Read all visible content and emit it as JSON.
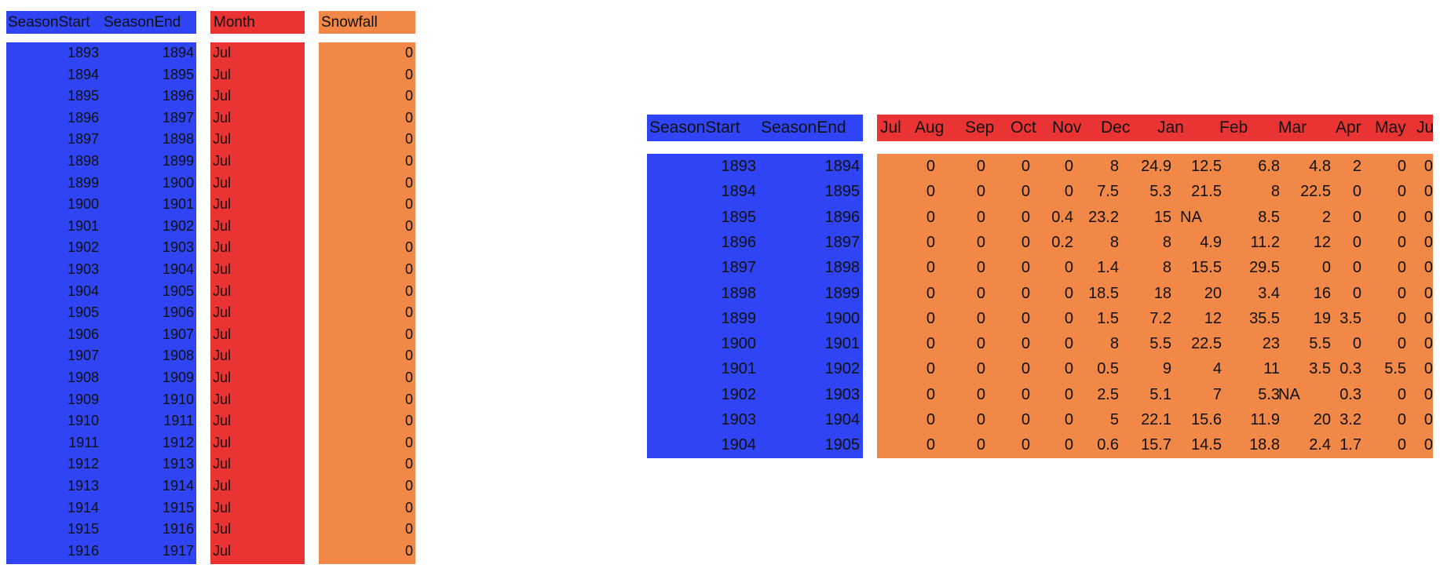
{
  "long_table": {
    "headers": {
      "season_start": "SeasonStart",
      "season_end": "SeasonEnd",
      "month": "Month",
      "snowfall": "Snowfall"
    },
    "rows": [
      {
        "season_start": "1893",
        "season_end": "1894",
        "month": "Jul",
        "snowfall": "0"
      },
      {
        "season_start": "1894",
        "season_end": "1895",
        "month": "Jul",
        "snowfall": "0"
      },
      {
        "season_start": "1895",
        "season_end": "1896",
        "month": "Jul",
        "snowfall": "0"
      },
      {
        "season_start": "1896",
        "season_end": "1897",
        "month": "Jul",
        "snowfall": "0"
      },
      {
        "season_start": "1897",
        "season_end": "1898",
        "month": "Jul",
        "snowfall": "0"
      },
      {
        "season_start": "1898",
        "season_end": "1899",
        "month": "Jul",
        "snowfall": "0"
      },
      {
        "season_start": "1899",
        "season_end": "1900",
        "month": "Jul",
        "snowfall": "0"
      },
      {
        "season_start": "1900",
        "season_end": "1901",
        "month": "Jul",
        "snowfall": "0"
      },
      {
        "season_start": "1901",
        "season_end": "1902",
        "month": "Jul",
        "snowfall": "0"
      },
      {
        "season_start": "1902",
        "season_end": "1903",
        "month": "Jul",
        "snowfall": "0"
      },
      {
        "season_start": "1903",
        "season_end": "1904",
        "month": "Jul",
        "snowfall": "0"
      },
      {
        "season_start": "1904",
        "season_end": "1905",
        "month": "Jul",
        "snowfall": "0"
      },
      {
        "season_start": "1905",
        "season_end": "1906",
        "month": "Jul",
        "snowfall": "0"
      },
      {
        "season_start": "1906",
        "season_end": "1907",
        "month": "Jul",
        "snowfall": "0"
      },
      {
        "season_start": "1907",
        "season_end": "1908",
        "month": "Jul",
        "snowfall": "0"
      },
      {
        "season_start": "1908",
        "season_end": "1909",
        "month": "Jul",
        "snowfall": "0"
      },
      {
        "season_start": "1909",
        "season_end": "1910",
        "month": "Jul",
        "snowfall": "0"
      },
      {
        "season_start": "1910",
        "season_end": "1911",
        "month": "Jul",
        "snowfall": "0"
      },
      {
        "season_start": "1911",
        "season_end": "1912",
        "month": "Jul",
        "snowfall": "0"
      },
      {
        "season_start": "1912",
        "season_end": "1913",
        "month": "Jul",
        "snowfall": "0"
      },
      {
        "season_start": "1913",
        "season_end": "1914",
        "month": "Jul",
        "snowfall": "0"
      },
      {
        "season_start": "1914",
        "season_end": "1915",
        "month": "Jul",
        "snowfall": "0"
      },
      {
        "season_start": "1915",
        "season_end": "1916",
        "month": "Jul",
        "snowfall": "0"
      },
      {
        "season_start": "1916",
        "season_end": "1917",
        "month": "Jul",
        "snowfall": "0"
      }
    ]
  },
  "wide_table": {
    "headers": {
      "season_start": "SeasonStart",
      "season_end": "SeasonEnd"
    },
    "months": [
      "Jul",
      "Aug",
      "Sep",
      "Oct",
      "Nov",
      "Dec",
      "Jan",
      "Feb",
      "Mar",
      "Apr",
      "May",
      "Jun"
    ],
    "rows": [
      {
        "season_start": "1893",
        "season_end": "1894",
        "values": [
          "0",
          "0",
          "0",
          "0",
          "8",
          "24.9",
          "12.5",
          "6.8",
          "4.8",
          "2",
          "0",
          "0"
        ]
      },
      {
        "season_start": "1894",
        "season_end": "1895",
        "values": [
          "0",
          "0",
          "0",
          "0",
          "7.5",
          "5.3",
          "21.5",
          "8",
          "22.5",
          "0",
          "0",
          "0"
        ]
      },
      {
        "season_start": "1895",
        "season_end": "1896",
        "values": [
          "0",
          "0",
          "0",
          "0.4",
          "23.2",
          "15",
          "NA",
          "8.5",
          "2",
          "0",
          "0",
          "0"
        ]
      },
      {
        "season_start": "1896",
        "season_end": "1897",
        "values": [
          "0",
          "0",
          "0",
          "0.2",
          "8",
          "8",
          "4.9",
          "11.2",
          "12",
          "0",
          "0",
          "0"
        ]
      },
      {
        "season_start": "1897",
        "season_end": "1898",
        "values": [
          "0",
          "0",
          "0",
          "0",
          "1.4",
          "8",
          "15.5",
          "29.5",
          "0",
          "0",
          "0",
          "0"
        ]
      },
      {
        "season_start": "1898",
        "season_end": "1899",
        "values": [
          "0",
          "0",
          "0",
          "0",
          "18.5",
          "18",
          "20",
          "3.4",
          "16",
          "0",
          "0",
          "0"
        ]
      },
      {
        "season_start": "1899",
        "season_end": "1900",
        "values": [
          "0",
          "0",
          "0",
          "0",
          "1.5",
          "7.2",
          "12",
          "35.5",
          "19",
          "3.5",
          "0",
          "0"
        ]
      },
      {
        "season_start": "1900",
        "season_end": "1901",
        "values": [
          "0",
          "0",
          "0",
          "0",
          "8",
          "5.5",
          "22.5",
          "23",
          "5.5",
          "0",
          "0",
          "0"
        ]
      },
      {
        "season_start": "1901",
        "season_end": "1902",
        "values": [
          "0",
          "0",
          "0",
          "0",
          "0.5",
          "9",
          "4",
          "11",
          "3.5",
          "0.3",
          "5.5",
          "0"
        ]
      },
      {
        "season_start": "1902",
        "season_end": "1903",
        "values": [
          "0",
          "0",
          "0",
          "0",
          "2.5",
          "5.1",
          "7",
          "5.3",
          "NA",
          "0.3",
          "0",
          "0"
        ]
      },
      {
        "season_start": "1903",
        "season_end": "1904",
        "values": [
          "0",
          "0",
          "0",
          "0",
          "5",
          "22.1",
          "15.6",
          "11.9",
          "20",
          "3.2",
          "0",
          "0"
        ]
      },
      {
        "season_start": "1904",
        "season_end": "1905",
        "values": [
          "0",
          "0",
          "0",
          "0",
          "0.6",
          "15.7",
          "14.5",
          "18.8",
          "2.4",
          "1.7",
          "0",
          "0"
        ]
      }
    ]
  },
  "colors": {
    "blue": "#2f45f5",
    "red": "#ea3433",
    "orange": "#f18848"
  }
}
